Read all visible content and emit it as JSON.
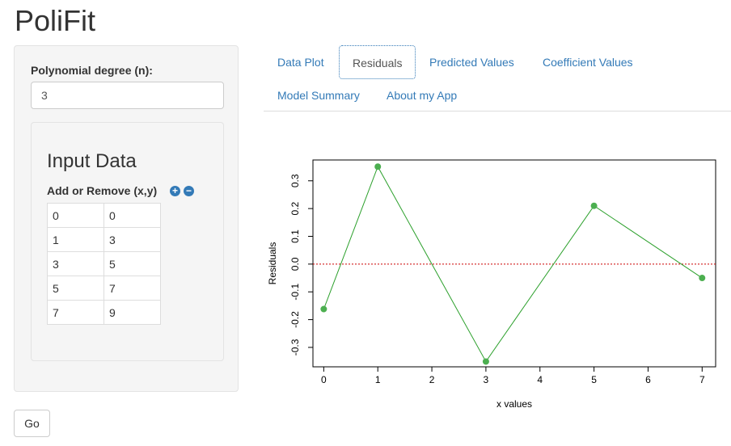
{
  "app": {
    "title": "PoliFit"
  },
  "sidebar": {
    "degree_label": "Polynomial degree (n):",
    "degree_value": "3",
    "input_title": "Input Data",
    "add_remove_label": "Add or Remove (x,y)",
    "add_icon": "plus-circle-icon",
    "remove_icon": "minus-circle-icon",
    "rows": [
      [
        "0",
        "0"
      ],
      [
        "1",
        "3"
      ],
      [
        "3",
        "5"
      ],
      [
        "5",
        "7"
      ],
      [
        "7",
        "9"
      ]
    ]
  },
  "go_button": {
    "label": "Go"
  },
  "tabs": [
    {
      "label": "Data Plot",
      "active": false
    },
    {
      "label": "Residuals",
      "active": true
    },
    {
      "label": "Predicted Values",
      "active": false
    },
    {
      "label": "Coefficient Values",
      "active": false
    },
    {
      "label": "Model Summary",
      "active": false
    },
    {
      "label": "About my App",
      "active": false
    }
  ],
  "colors": {
    "link": "#337ab7",
    "series": "#2ca02c",
    "point": "#4caf50",
    "zero_line": "#cc0000"
  },
  "chart_data": {
    "type": "line",
    "xlabel": "x values",
    "ylabel": "Residuals",
    "xlim": [
      -0.2,
      7.25
    ],
    "ylim": [
      -0.37,
      0.375
    ],
    "x_ticks": [
      0,
      1,
      2,
      3,
      4,
      5,
      6,
      7
    ],
    "y_ticks": [
      -0.3,
      -0.2,
      -0.1,
      0.0,
      0.1,
      0.2,
      0.3
    ],
    "y_tick_labels": [
      "-0.3",
      "-0.2",
      "-0.1",
      "0.0",
      "0.1",
      "0.2",
      "0.3"
    ],
    "series": [
      {
        "x": [
          0,
          1,
          3,
          5,
          7
        ],
        "y": [
          -0.162,
          0.351,
          -0.351,
          0.21,
          -0.05
        ]
      }
    ],
    "reference_line": {
      "y": 0,
      "style": "dotted"
    },
    "grid": false
  }
}
